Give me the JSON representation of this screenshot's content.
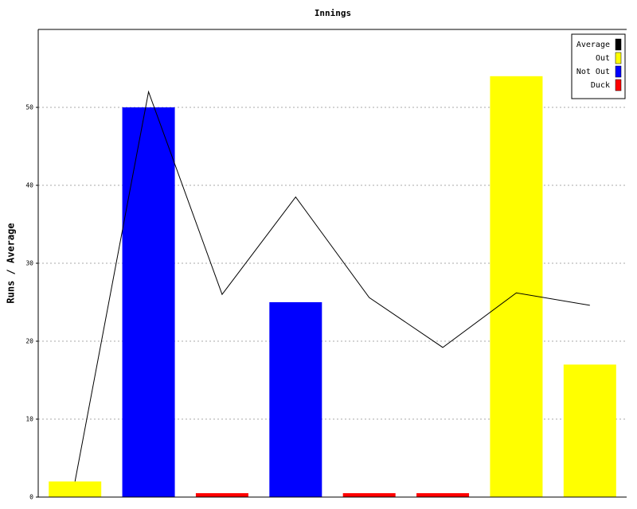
{
  "chart_data": {
    "type": "bar-line",
    "title": "Innings",
    "y_label": "Runs / Average",
    "categories": [
      null,
      null,
      null,
      null,
      null,
      null,
      null,
      null
    ],
    "series": [
      {
        "name": "Average",
        "color": "#000000",
        "kind": "line",
        "values": [
          2,
          52,
          26,
          38.5,
          25.6,
          19.2,
          26.2,
          24.6
        ]
      },
      {
        "name": "Out",
        "color": "#ffff00",
        "kind": "bar",
        "values": [
          2,
          null,
          null,
          null,
          null,
          null,
          54,
          17
        ]
      },
      {
        "name": "Not Out",
        "color": "#0000ff",
        "kind": "bar",
        "values": [
          null,
          50,
          null,
          25,
          null,
          null,
          null,
          null
        ]
      },
      {
        "name": "Duck",
        "color": "#ff0000",
        "kind": "bar",
        "values": [
          null,
          null,
          0.5,
          null,
          0.5,
          0.5,
          null,
          null
        ]
      }
    ],
    "ylim": [
      0,
      60
    ],
    "yticks": [
      0,
      10,
      20,
      30,
      40,
      50
    ],
    "grid": true,
    "legend": "top-right"
  }
}
